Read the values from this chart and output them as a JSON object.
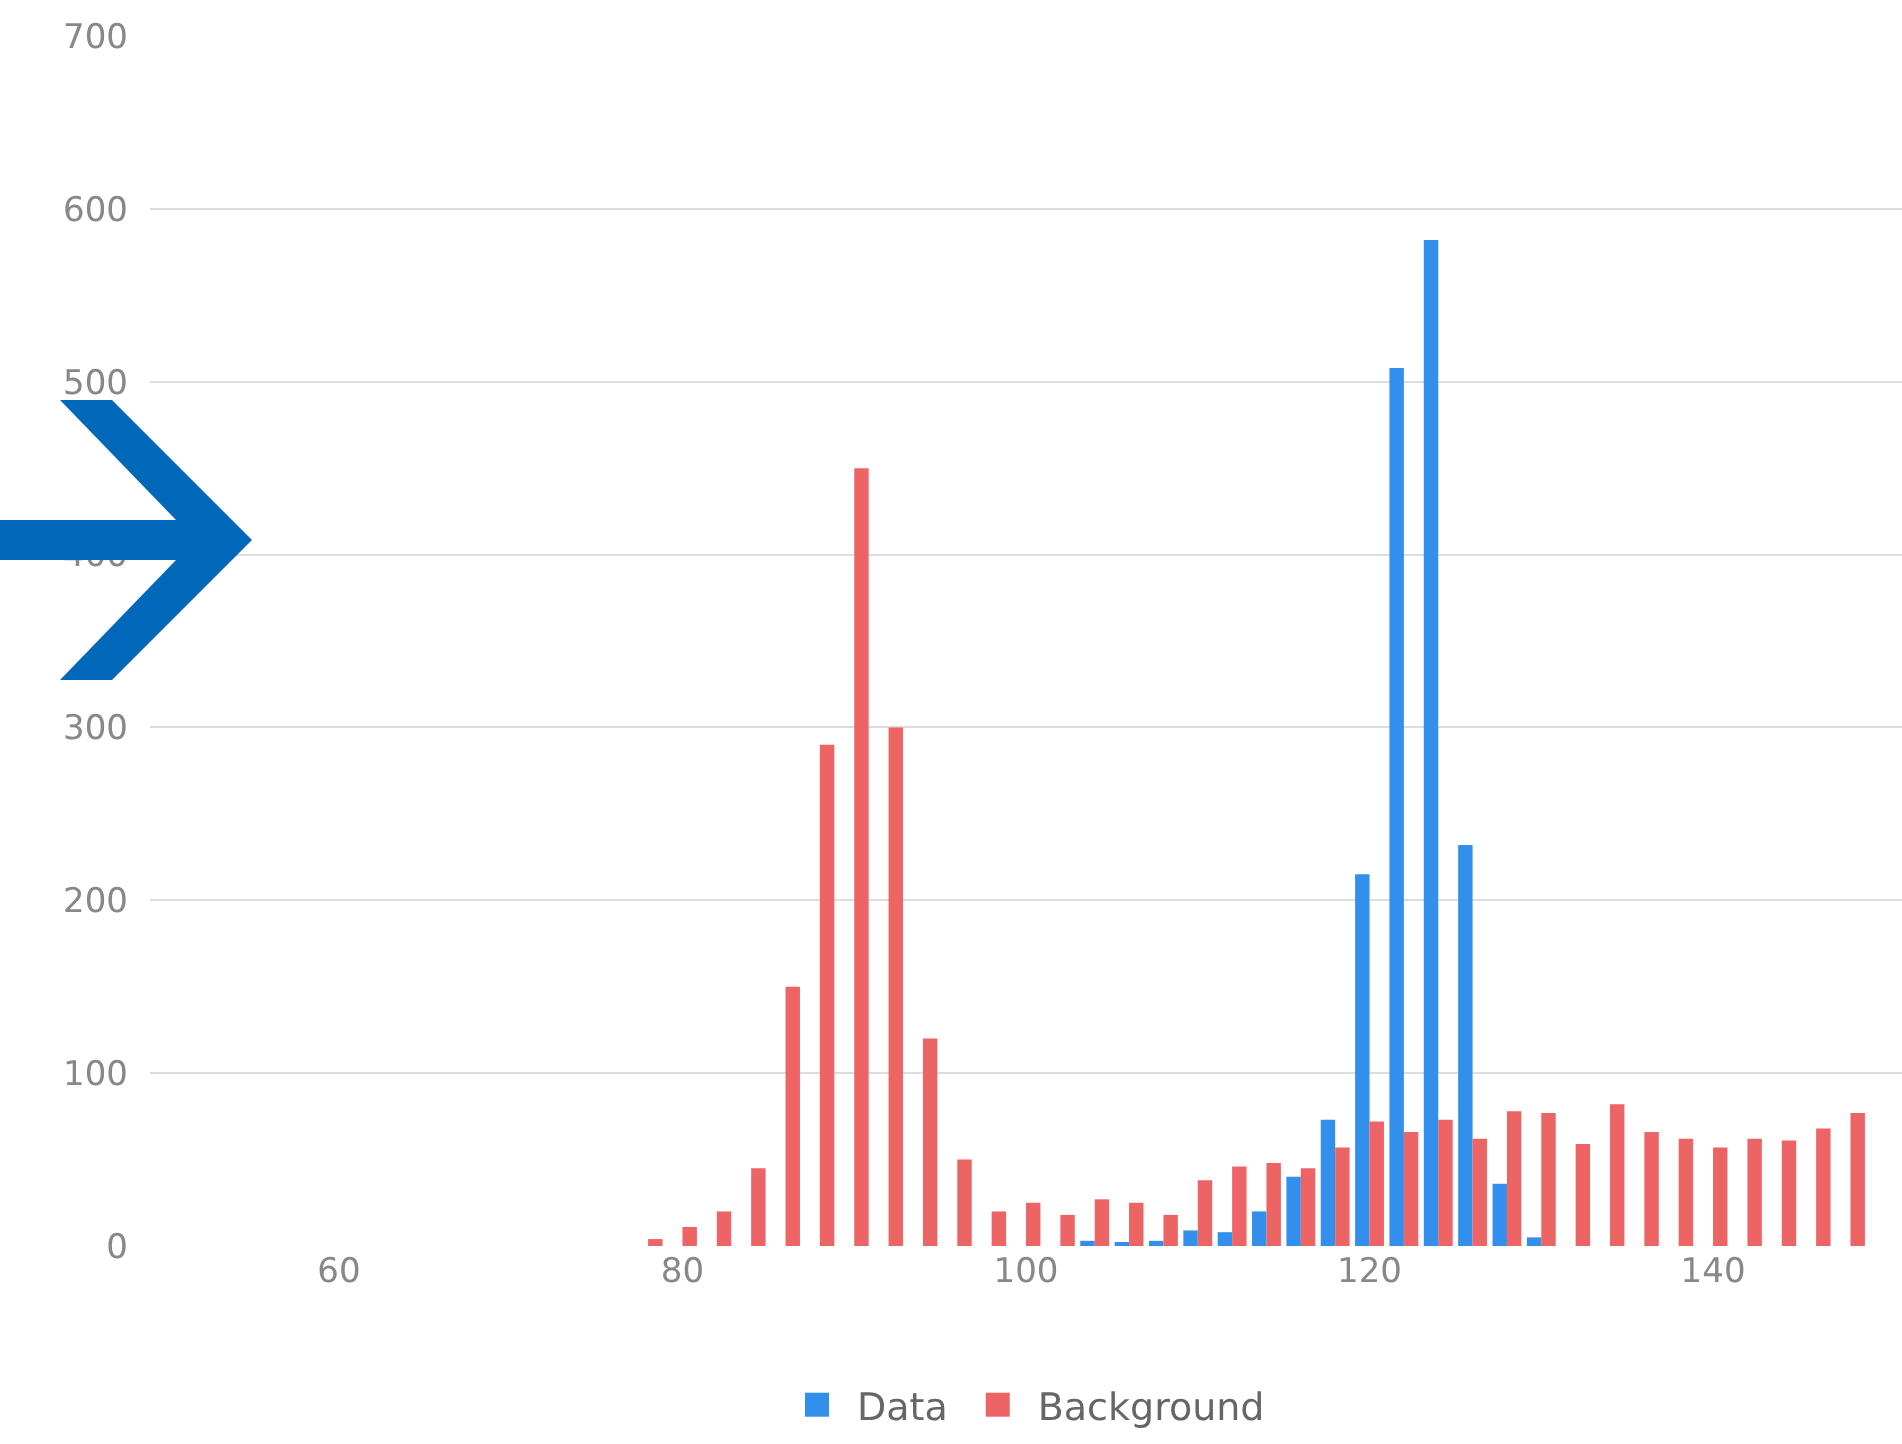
{
  "chart_data": {
    "type": "bar",
    "x": [
      78,
      80,
      82,
      84,
      86,
      88,
      90,
      92,
      94,
      96,
      98,
      100,
      102,
      104,
      106,
      108,
      110,
      112,
      114,
      116,
      118,
      120,
      122,
      124,
      126,
      128,
      130,
      132,
      134,
      136,
      138,
      140,
      142,
      144,
      146,
      148
    ],
    "series": [
      {
        "name": "Data",
        "color": "#3290ec",
        "values": [
          null,
          null,
          null,
          null,
          null,
          null,
          null,
          null,
          null,
          null,
          null,
          null,
          null,
          3,
          2,
          3,
          9,
          8,
          20,
          40,
          73,
          215,
          508,
          582,
          232,
          36,
          5,
          null,
          null,
          null,
          null,
          null,
          null,
          null,
          null,
          null
        ]
      },
      {
        "name": "Background",
        "color": "#ec6464",
        "values": [
          4,
          11,
          20,
          45,
          150,
          290,
          450,
          300,
          120,
          50,
          20,
          25,
          18,
          27,
          25,
          18,
          38,
          46,
          48,
          45,
          57,
          72,
          66,
          73,
          62,
          78,
          77,
          59,
          82,
          66,
          62,
          57,
          62,
          61,
          68,
          77
        ]
      }
    ],
    "xlim": [
      49,
      151
    ],
    "xticks": [
      60,
      80,
      100,
      120,
      140
    ],
    "ylim": [
      0,
      700
    ],
    "yticks": [
      0,
      100,
      200,
      300,
      400,
      500,
      600,
      700
    ],
    "grid": "y",
    "legend": "bottom"
  }
}
